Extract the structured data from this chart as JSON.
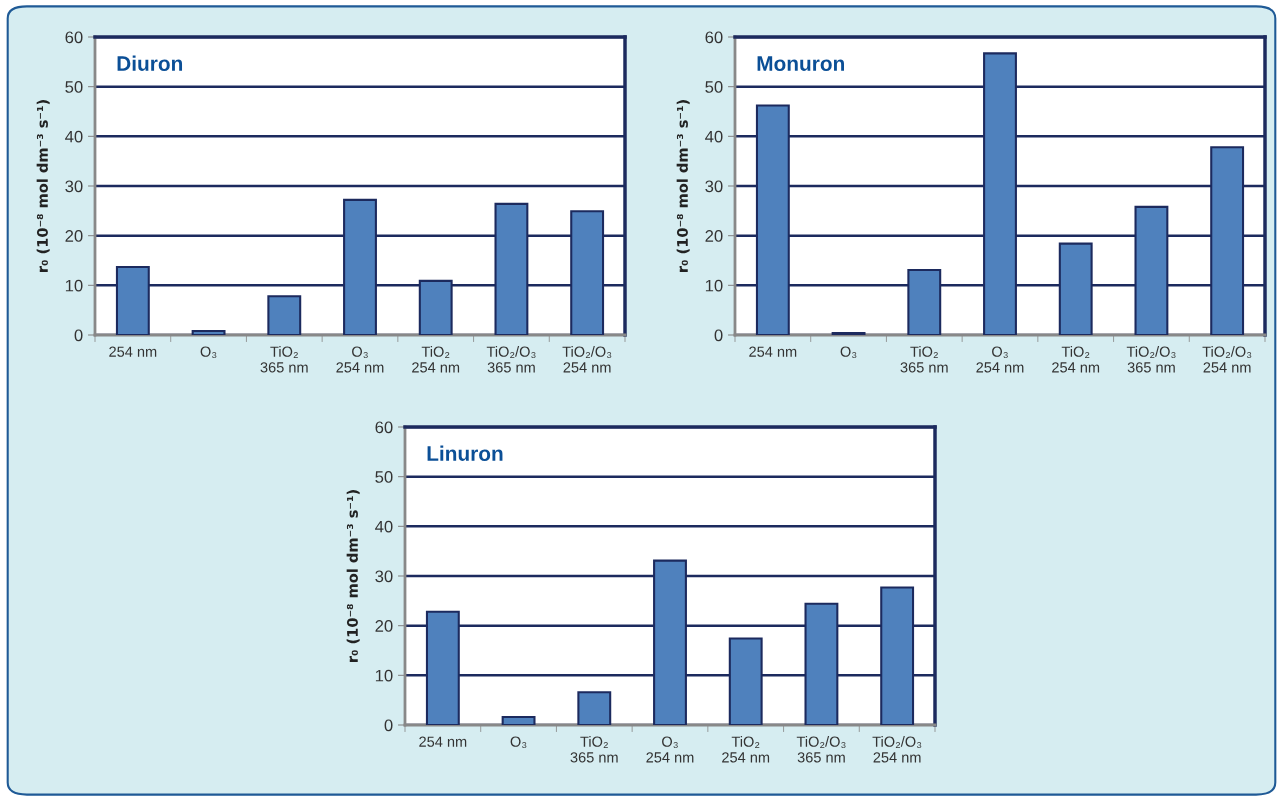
{
  "chart_data": [
    {
      "type": "bar",
      "title": "Diuron",
      "ylabel": "r₀ (10⁻⁸ mol dm⁻³ s⁻¹)",
      "categories": [
        "254 nm",
        "O₃",
        "TiO₂\n365 nm",
        "O₃\n254 nm",
        "TiO₂\n254 nm",
        "TiO₂/O₃\n365 nm",
        "TiO₂/O₃\n254 nm"
      ],
      "values": [
        13.7,
        0.8,
        7.8,
        27.2,
        10.9,
        26.4,
        24.9
      ],
      "color": "#4f81bd",
      "ylim": [
        0,
        60
      ],
      "yticks": [
        0,
        10,
        20,
        30,
        40,
        50,
        60
      ],
      "grid": "y"
    },
    {
      "type": "bar",
      "title": "Monuron",
      "ylabel": "r₀ (10⁻⁸ mol dm⁻³ s⁻¹)",
      "categories": [
        "254 nm",
        "O₃",
        "TiO₂\n365 nm",
        "O₃\n254 nm",
        "TiO₂\n254 nm",
        "TiO₂/O₃\n365 nm",
        "TiO₂/O₃\n254 nm"
      ],
      "values": [
        46.2,
        0.4,
        13.1,
        56.7,
        18.4,
        25.8,
        37.8
      ],
      "color": "#4f81bd",
      "ylim": [
        0,
        60
      ],
      "yticks": [
        0,
        10,
        20,
        30,
        40,
        50,
        60
      ],
      "grid": "y"
    },
    {
      "type": "bar",
      "title": "Linuron",
      "ylabel": "r₀ (10⁻⁸ mol dm⁻³ s⁻¹)",
      "categories": [
        "254 nm",
        "O₃",
        "TiO₂\n365 nm",
        "O₃\n254 nm",
        "TiO₂\n254 nm",
        "TiO₂/O₃\n365 nm",
        "TiO₂/O₃\n254 nm"
      ],
      "values": [
        22.8,
        1.6,
        6.6,
        33.1,
        17.4,
        24.4,
        27.7
      ],
      "color": "#4f81bd",
      "ylim": [
        0,
        60
      ],
      "yticks": [
        0,
        10,
        20,
        30,
        40,
        50,
        60
      ],
      "grid": "y"
    }
  ]
}
